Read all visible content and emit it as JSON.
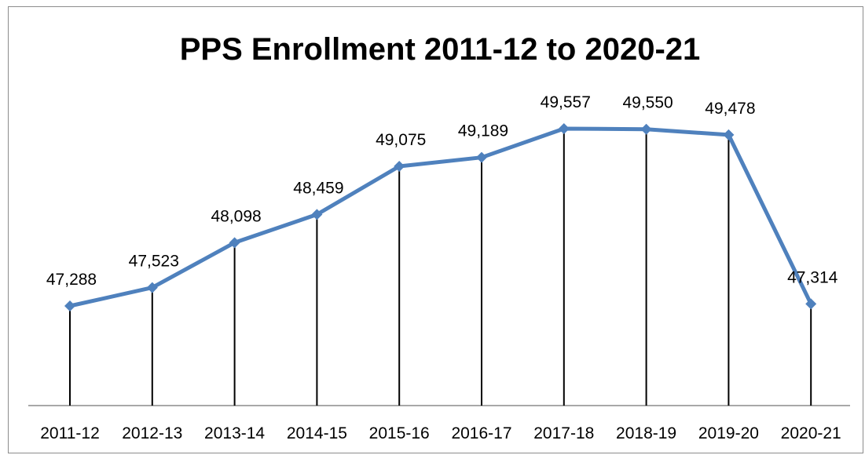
{
  "chart_data": {
    "type": "line",
    "title": "PPS Enrollment 2011-12 to 2020-21",
    "categories": [
      "2011-12",
      "2012-13",
      "2013-14",
      "2014-15",
      "2015-16",
      "2016-17",
      "2017-18",
      "2018-19",
      "2019-20",
      "2020-21"
    ],
    "values": [
      47288,
      47523,
      48098,
      48459,
      49075,
      49189,
      49557,
      49550,
      49478,
      47314
    ],
    "data_labels": [
      "47,288",
      "47,523",
      "48,098",
      "48,459",
      "49,075",
      "49,189",
      "49,557",
      "49,550",
      "49,478",
      "47,314"
    ],
    "xlabel": "",
    "ylabel": "",
    "ylim": [
      46000,
      50000
    ],
    "drop_lines": true,
    "grid": false,
    "legend": "none",
    "colors": {
      "line": "#4f81bd",
      "drop_line": "#000000",
      "axis": "#8c8c8c",
      "text": "#000000"
    }
  }
}
